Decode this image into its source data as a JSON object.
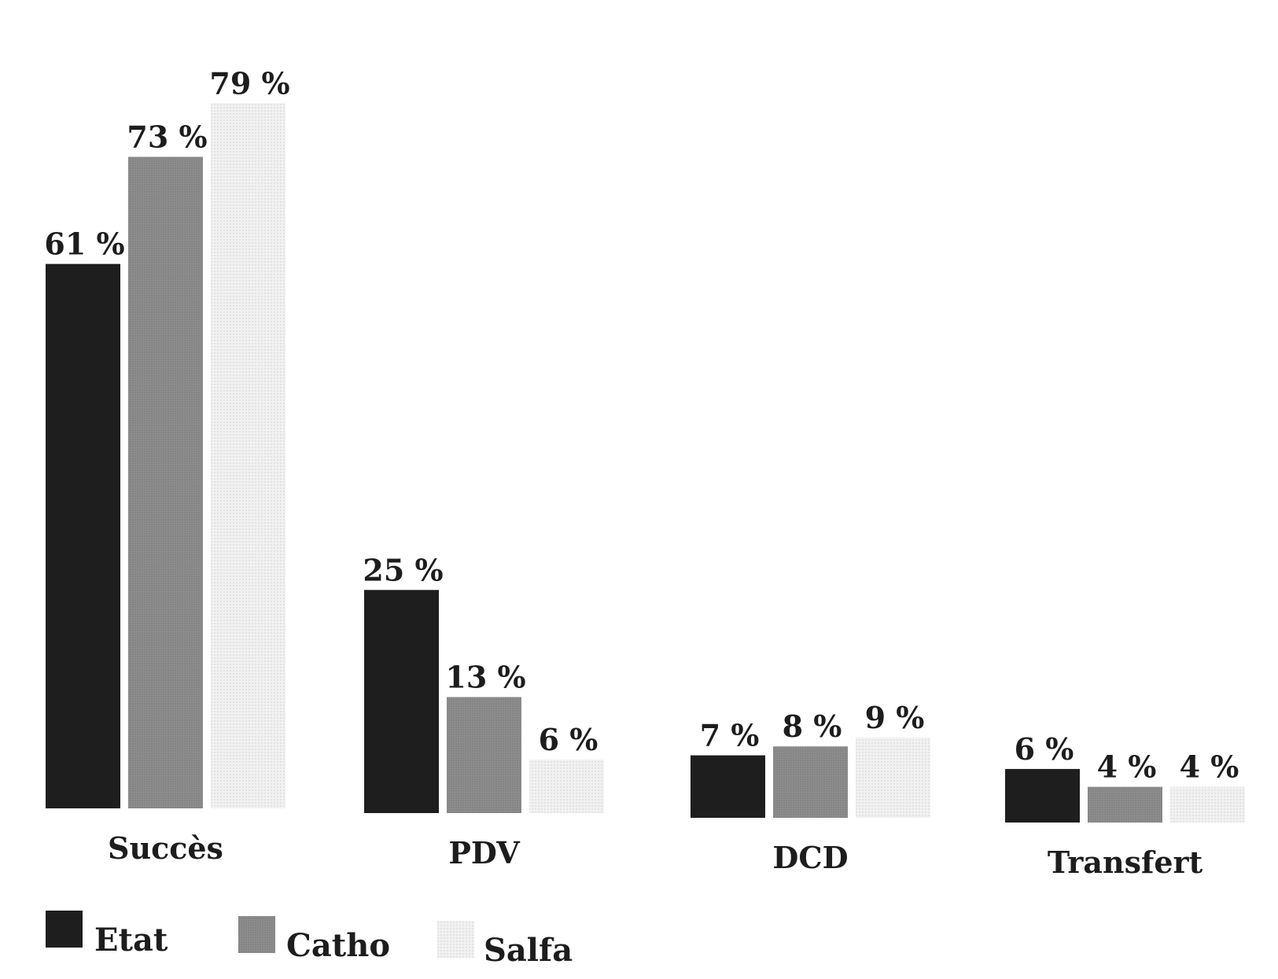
{
  "chart_data": {
    "type": "bar",
    "categories": [
      "Succès",
      "PDV",
      "DCD",
      "Transfert"
    ],
    "series": [
      {
        "name": "Etat",
        "values": [
          61,
          25,
          7,
          6
        ],
        "labels": [
          "61 %",
          "25 %",
          "7 %",
          "6 %"
        ]
      },
      {
        "name": "Catho",
        "values": [
          73,
          13,
          8,
          4
        ],
        "labels": [
          "73 %",
          "13 %",
          "8 %",
          "4 %"
        ]
      },
      {
        "name": "Salfa",
        "values": [
          79,
          6,
          9,
          4
        ],
        "labels": [
          "79 %",
          "6 %",
          "9 %",
          "4 %"
        ]
      }
    ],
    "legend_position": "bottom-left",
    "grid": false,
    "ylim": [
      0,
      80
    ]
  },
  "colors": {
    "Etat": "#1e1e1e",
    "Catho": "#8c8c8c",
    "Salfa": "#ececec"
  }
}
